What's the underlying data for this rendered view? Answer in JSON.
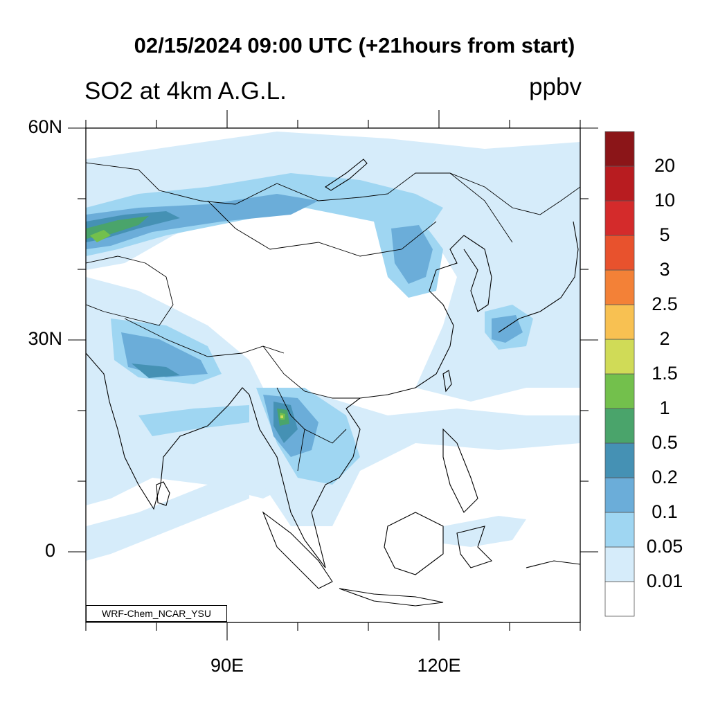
{
  "title": "02/15/2024 09:00 UTC (+21hours from start)",
  "variable_label": "SO2 at 4km A.G.L.",
  "units": "ppbv",
  "credit": "WRF-Chem_NCAR_YSU",
  "axes": {
    "lat_labels": [
      {
        "text": "60N",
        "lat": 60
      },
      {
        "text": "30N",
        "lat": 30
      },
      {
        "text": "0",
        "lat": 0
      }
    ],
    "lon_labels": [
      {
        "text": "90E",
        "lon": 90
      },
      {
        "text": "120E",
        "lon": 120
      }
    ],
    "lon_range": [
      70,
      140
    ],
    "lat_range": [
      -10,
      60
    ]
  },
  "colorbar": {
    "colors": [
      "#ffffff",
      "#d6ecfa",
      "#9fd6f2",
      "#6badd9",
      "#4591b4",
      "#4aa46b",
      "#73c04c",
      "#d0db57",
      "#f8c152",
      "#f38137",
      "#e8522d",
      "#d42b2b",
      "#b81c20",
      "#8b1518"
    ],
    "labels": [
      "0.01",
      "0.05",
      "0.1",
      "0.2",
      "0.5",
      "1",
      "1.5",
      "2",
      "2.5",
      "3",
      "5",
      "10",
      "20"
    ]
  }
}
